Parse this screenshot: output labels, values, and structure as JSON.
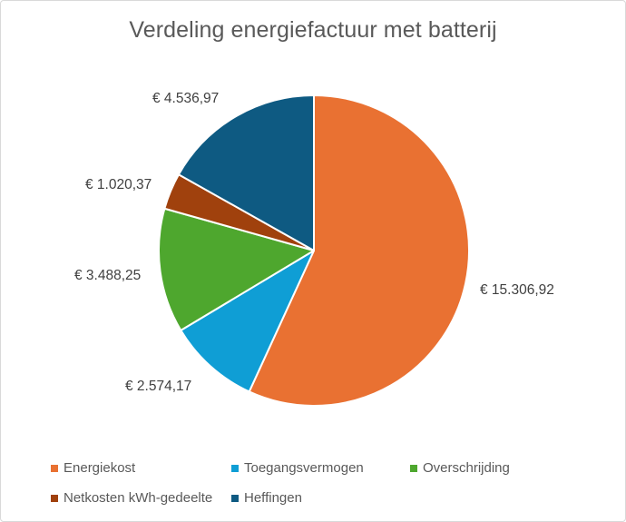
{
  "chart_data": {
    "type": "pie",
    "title": "Verdeling energiefactuur met batterij",
    "categories": [
      "Energiekost",
      "Toegangsvermogen",
      "Overschrijding",
      "Netkosten kWh-gedeelte",
      "Heffingen"
    ],
    "values": [
      15306.92,
      2574.17,
      3488.25,
      1020.37,
      4536.97
    ],
    "data_labels": [
      "€ 15.306,92",
      "€ 2.574,17",
      "€ 3.488,25",
      "€ 1.020,37",
      "€ 4.536,97"
    ],
    "colors": [
      "#E97132",
      "#0F9ED5",
      "#4EA72E",
      "#A0410D",
      "#0E5A82"
    ],
    "start_angle": "12 o'clock",
    "direction": "clockwise",
    "legend_position": "bottom"
  }
}
